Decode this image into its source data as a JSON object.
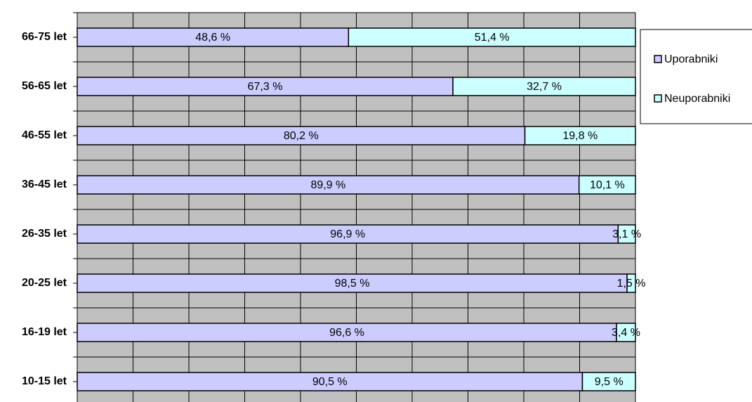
{
  "chart_data": {
    "type": "stacked_bar_horizontal",
    "categories": [
      "66-75 let",
      "56-65 let",
      "46-55 let",
      "36-45 let",
      "26-35 let",
      "20-25 let",
      "16-19 let",
      "10-15 let"
    ],
    "series": [
      {
        "name": "Uporabniki",
        "color": "#ccccff",
        "values": [
          48.6,
          67.3,
          80.2,
          89.9,
          96.9,
          98.5,
          96.6,
          90.5
        ],
        "value_labels": [
          "48,6 %",
          "67,3 %",
          "80,2 %",
          "89,9 %",
          "96,9 %",
          "98,5 %",
          "96,6 %",
          "90,5 %"
        ]
      },
      {
        "name": "Neuporabniki",
        "color": "#ccffff",
        "values": [
          51.4,
          32.7,
          19.8,
          10.1,
          3.1,
          1.5,
          3.4,
          9.5
        ],
        "value_labels": [
          "51,4 %",
          "32,7 %",
          "19,8 %",
          "10,1 %",
          "3,1 %",
          "1,5 %",
          "3,4 %",
          "9,5 %"
        ]
      }
    ],
    "xlim": [
      0,
      100
    ],
    "xticks": [
      0,
      10,
      20,
      30,
      40,
      50,
      60,
      70,
      80,
      90,
      100
    ],
    "grid": true,
    "legend": "right"
  }
}
